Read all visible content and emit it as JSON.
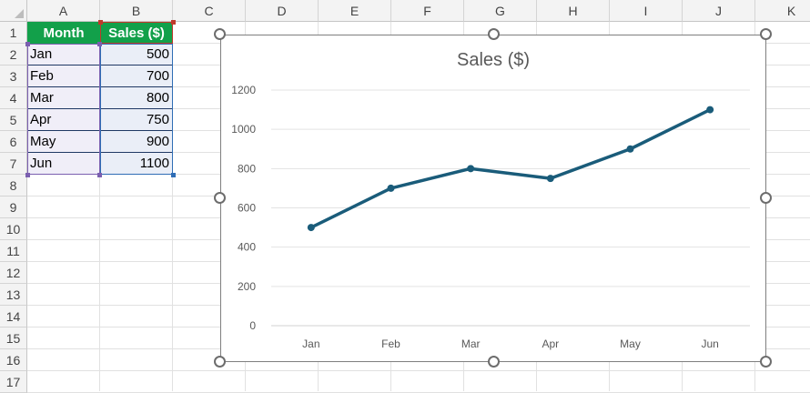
{
  "columns": [
    "A",
    "B",
    "C",
    "D",
    "E",
    "F",
    "G",
    "H",
    "I",
    "J",
    "K"
  ],
  "rows": [
    "1",
    "2",
    "3",
    "4",
    "5",
    "6",
    "7",
    "8",
    "9",
    "10",
    "11",
    "12",
    "13",
    "14",
    "15",
    "16",
    "17"
  ],
  "table": {
    "headers": [
      "Month",
      "Sales ($)"
    ],
    "rows": [
      {
        "month": "Jan",
        "sales": "500"
      },
      {
        "month": "Feb",
        "sales": "700"
      },
      {
        "month": "Mar",
        "sales": "800"
      },
      {
        "month": "Apr",
        "sales": "750"
      },
      {
        "month": "May",
        "sales": "900"
      },
      {
        "month": "Jun",
        "sales": "1100"
      }
    ]
  },
  "colors": {
    "header_fill": "#12a04a",
    "line": "#1a5c7a",
    "month_range": "#7b5fb0",
    "sales_range": "#2f6db5",
    "header_range": "#c0392b"
  },
  "chart_data": {
    "type": "line",
    "title": "Sales ($)",
    "categories": [
      "Jan",
      "Feb",
      "Mar",
      "Apr",
      "May",
      "Jun"
    ],
    "series": [
      {
        "values": [
          500,
          700,
          800,
          750,
          900,
          1100
        ]
      }
    ],
    "yticks": [
      "0",
      "200",
      "400",
      "600",
      "800",
      "1000",
      "1200"
    ],
    "ylim": [
      0,
      1200
    ],
    "grid": true,
    "legend": "none"
  }
}
